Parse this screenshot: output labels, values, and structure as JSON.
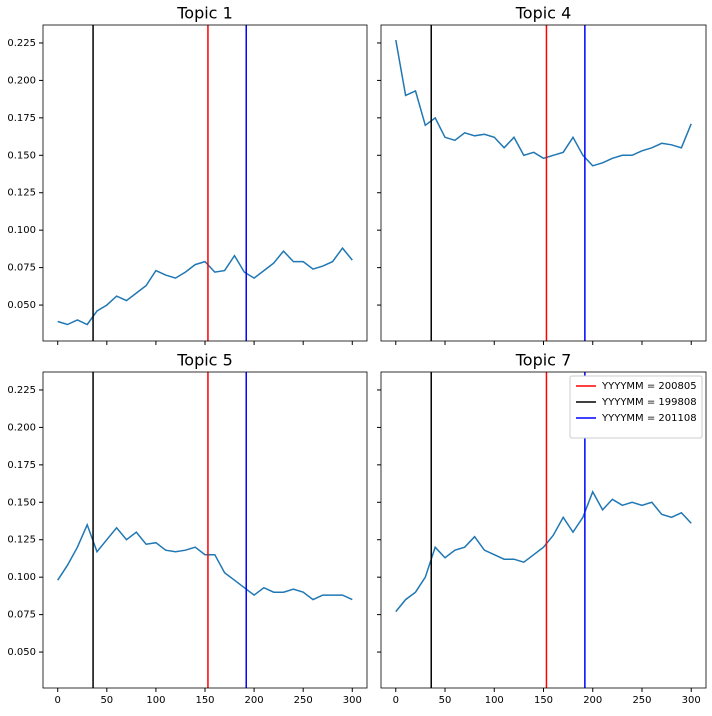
{
  "chart_data": [
    {
      "type": "line",
      "title": "Topic 1",
      "xlim": [
        -15,
        315
      ],
      "ylim": [
        0.026,
        0.237
      ],
      "yticks": [
        {
          "value": 0.05,
          "label": "0.050"
        },
        0.075,
        {
          "value": 0.1,
          "label": "0.100"
        },
        0.125,
        {
          "value": 0.15,
          "label": "0.150"
        },
        0.175,
        {
          "value": 0.2,
          "label": "0.200"
        },
        0.225
      ],
      "x": [
        0,
        10,
        20,
        30,
        40,
        50,
        60,
        70,
        80,
        90,
        100,
        110,
        120,
        130,
        140,
        150,
        160,
        170,
        180,
        190,
        200,
        210,
        220,
        230,
        240,
        250,
        260,
        270,
        280,
        290,
        300
      ],
      "series": [
        {
          "color": "#1f77b4",
          "values": [
            0.039,
            0.037,
            0.04,
            0.037,
            0.046,
            0.05,
            0.056,
            0.053,
            0.058,
            0.063,
            0.073,
            0.07,
            0.068,
            0.072,
            0.077,
            0.079,
            0.072,
            0.073,
            0.083,
            0.072,
            0.068,
            0.073,
            0.078,
            0.086,
            0.079,
            0.079,
            0.074,
            0.076,
            0.079,
            0.088,
            0.08
          ]
        }
      ],
      "vlines": [
        {
          "x": 153,
          "color": "#ff0000"
        },
        {
          "x": 36,
          "color": "#000000"
        },
        {
          "x": 192,
          "color": "#0000ff"
        }
      ]
    },
    {
      "type": "line",
      "title": "Topic 4",
      "xlim": [
        -15,
        315
      ],
      "ylim": [
        0.026,
        0.237
      ],
      "x": [
        0,
        10,
        20,
        30,
        40,
        50,
        60,
        70,
        80,
        90,
        100,
        110,
        120,
        130,
        140,
        150,
        160,
        170,
        180,
        190,
        200,
        210,
        220,
        230,
        240,
        250,
        260,
        270,
        280,
        290,
        300
      ],
      "series": [
        {
          "color": "#1f77b4",
          "values": [
            0.227,
            0.19,
            0.193,
            0.17,
            0.175,
            0.162,
            0.16,
            0.165,
            0.163,
            0.164,
            0.162,
            0.155,
            0.162,
            0.15,
            0.152,
            0.148,
            0.15,
            0.152,
            0.162,
            0.15,
            0.143,
            0.145,
            0.148,
            0.15,
            0.15,
            0.153,
            0.155,
            0.158,
            0.157,
            0.155,
            0.171
          ]
        }
      ],
      "vlines": [
        {
          "x": 153,
          "color": "#ff0000"
        },
        {
          "x": 36,
          "color": "#000000"
        },
        {
          "x": 192,
          "color": "#0000ff"
        }
      ]
    },
    {
      "type": "line",
      "title": "Topic 5",
      "xlim": [
        -15,
        315
      ],
      "ylim": [
        0.026,
        0.237
      ],
      "xticks": [
        0,
        50,
        100,
        150,
        200,
        250,
        300
      ],
      "yticks": [
        {
          "value": 0.05,
          "label": "0.050"
        },
        0.075,
        {
          "value": 0.1,
          "label": "0.100"
        },
        0.125,
        {
          "value": 0.15,
          "label": "0.150"
        },
        0.175,
        {
          "value": 0.2,
          "label": "0.200"
        },
        0.225
      ],
      "x": [
        0,
        10,
        20,
        30,
        40,
        50,
        60,
        70,
        80,
        90,
        100,
        110,
        120,
        130,
        140,
        150,
        160,
        170,
        180,
        190,
        200,
        210,
        220,
        230,
        240,
        250,
        260,
        270,
        280,
        290,
        300
      ],
      "series": [
        {
          "color": "#1f77b4",
          "values": [
            0.098,
            0.108,
            0.12,
            0.135,
            0.117,
            0.125,
            0.133,
            0.125,
            0.13,
            0.122,
            0.123,
            0.118,
            0.117,
            0.118,
            0.12,
            0.115,
            0.115,
            0.103,
            0.098,
            0.093,
            0.088,
            0.093,
            0.09,
            0.09,
            0.092,
            0.09,
            0.085,
            0.088,
            0.088,
            0.088,
            0.085
          ]
        }
      ],
      "vlines": [
        {
          "x": 153,
          "color": "#ff0000"
        },
        {
          "x": 36,
          "color": "#000000"
        },
        {
          "x": 192,
          "color": "#0000ff"
        }
      ]
    },
    {
      "type": "line",
      "title": "Topic 7",
      "xlim": [
        -15,
        315
      ],
      "ylim": [
        0.026,
        0.237
      ],
      "xticks": [
        0,
        50,
        100,
        150,
        200,
        250,
        300
      ],
      "x": [
        0,
        10,
        20,
        30,
        40,
        50,
        60,
        70,
        80,
        90,
        100,
        110,
        120,
        130,
        140,
        150,
        160,
        170,
        180,
        190,
        200,
        210,
        220,
        230,
        240,
        250,
        260,
        270,
        280,
        290,
        300
      ],
      "series": [
        {
          "color": "#1f77b4",
          "values": [
            0.077,
            0.085,
            0.09,
            0.1,
            0.12,
            0.113,
            0.118,
            0.12,
            0.127,
            0.118,
            0.115,
            0.112,
            0.112,
            0.11,
            0.115,
            0.12,
            0.128,
            0.14,
            0.13,
            0.14,
            0.157,
            0.145,
            0.152,
            0.148,
            0.15,
            0.148,
            0.15,
            0.142,
            0.14,
            0.143,
            0.136
          ]
        }
      ],
      "vlines": [
        {
          "x": 153,
          "color": "#ff0000",
          "name": "YYYYMM = 200805"
        },
        {
          "x": 36,
          "color": "#000000",
          "name": "YYYYMM = 199808"
        },
        {
          "x": 192,
          "color": "#0000ff",
          "name": "YYYYMM = 201108"
        }
      ],
      "legend": "upper right"
    }
  ]
}
